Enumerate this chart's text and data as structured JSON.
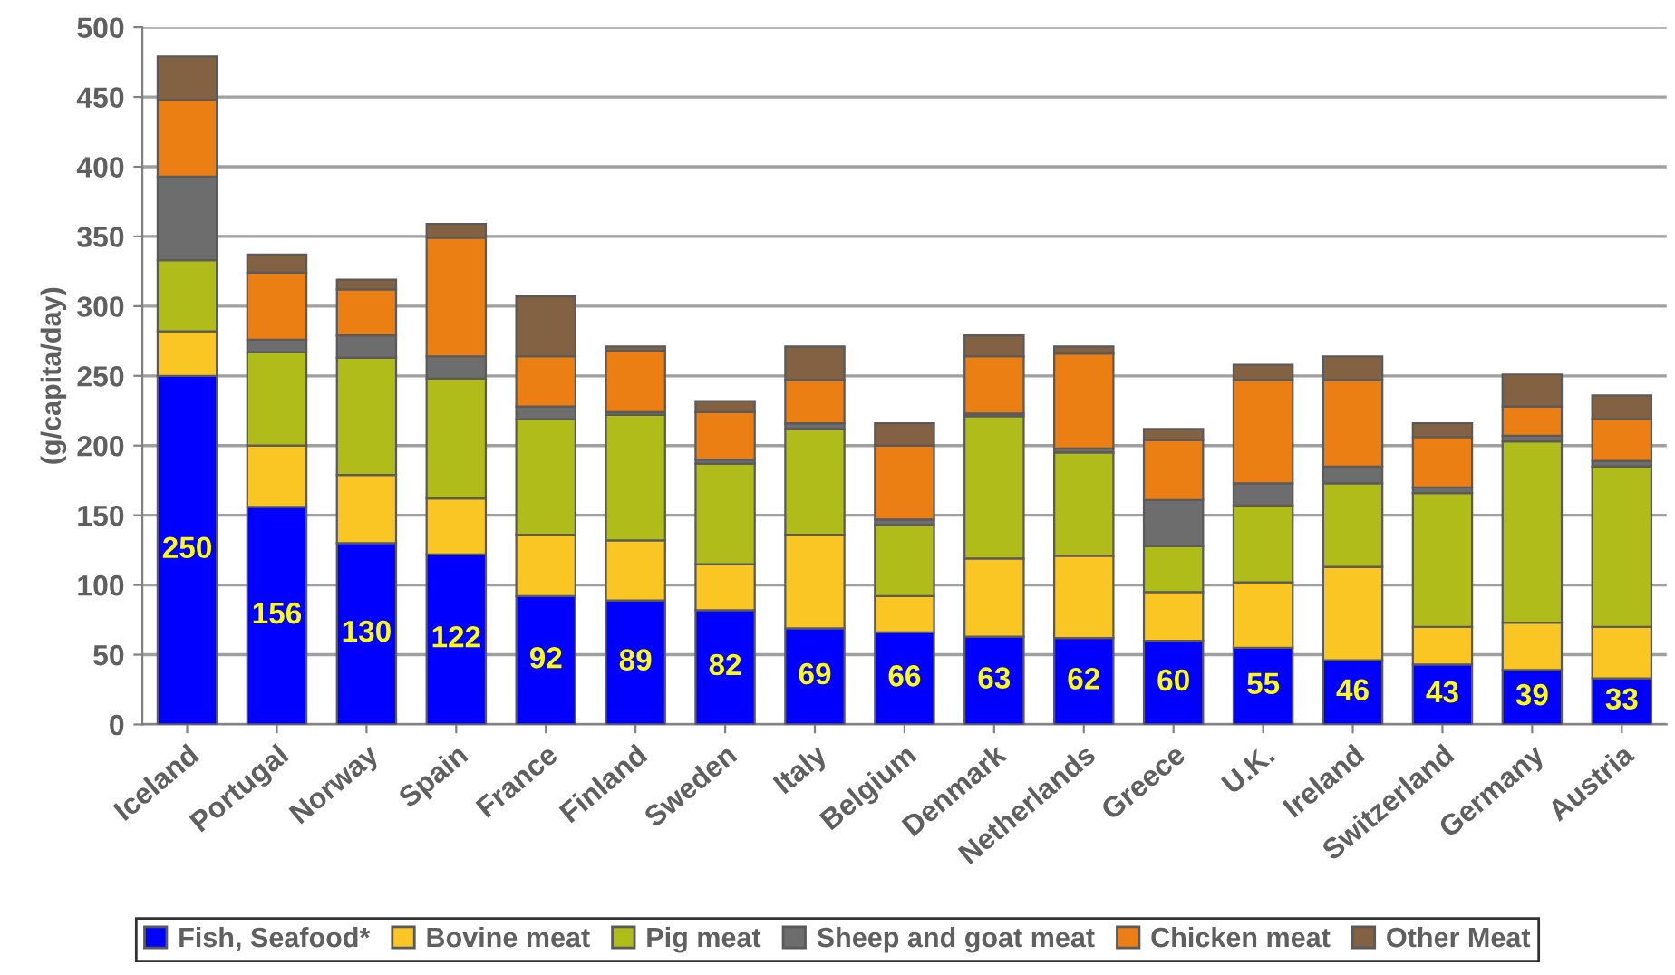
{
  "chart_data": {
    "type": "bar",
    "stacked": true,
    "ylabel": "(g/capita/day)",
    "categories": [
      "Iceland",
      "Portugal",
      "Norway",
      "Spain",
      "France",
      "Finland",
      "Sweden",
      "Italy",
      "Belgium",
      "Denmark",
      "Netherlands",
      "Greece",
      "U.K.",
      "Ireland",
      "Switzerland",
      "Germany",
      "Austria"
    ],
    "series": [
      {
        "name": "Fish, Seafood*",
        "color": "#0000ff",
        "values": [
          250,
          156,
          130,
          122,
          92,
          89,
          82,
          69,
          66,
          63,
          62,
          60,
          55,
          46,
          43,
          39,
          33
        ],
        "value_labels": [
          "250",
          "156",
          "130",
          "122",
          "92",
          "89",
          "82",
          "69",
          "66",
          "63",
          "62",
          "60",
          "55",
          "46",
          "43",
          "39",
          "33"
        ]
      },
      {
        "name": "Bovine meat",
        "color": "#f9c623",
        "values": [
          32,
          44,
          49,
          40,
          44,
          43,
          33,
          67,
          26,
          56,
          59,
          35,
          47,
          67,
          27,
          34,
          37
        ]
      },
      {
        "name": "Pig meat",
        "color": "#b0bc1a",
        "values": [
          51,
          67,
          84,
          86,
          83,
          90,
          72,
          76,
          51,
          102,
          74,
          33,
          55,
          60,
          96,
          130,
          115
        ]
      },
      {
        "name": "Sheep and goat meat",
        "color": "#6d6d6d",
        "values": [
          60,
          9,
          16,
          16,
          9,
          2,
          3,
          4,
          4,
          2,
          3,
          33,
          16,
          12,
          4,
          4,
          4
        ]
      },
      {
        "name": "Chicken meat",
        "color": "#eb7f14",
        "values": [
          55,
          48,
          33,
          85,
          36,
          44,
          34,
          31,
          53,
          41,
          68,
          43,
          74,
          62,
          36,
          21,
          30
        ]
      },
      {
        "name": "Other Meat",
        "color": "#836143",
        "values": [
          31,
          13,
          7,
          10,
          43,
          3,
          8,
          24,
          16,
          15,
          5,
          8,
          11,
          17,
          10,
          23,
          17
        ]
      }
    ],
    "ylim": [
      0,
      500
    ],
    "yticks": [
      0,
      50,
      100,
      150,
      200,
      250,
      300,
      350,
      400,
      450,
      500
    ],
    "grid": "y",
    "legend": "bottom"
  }
}
